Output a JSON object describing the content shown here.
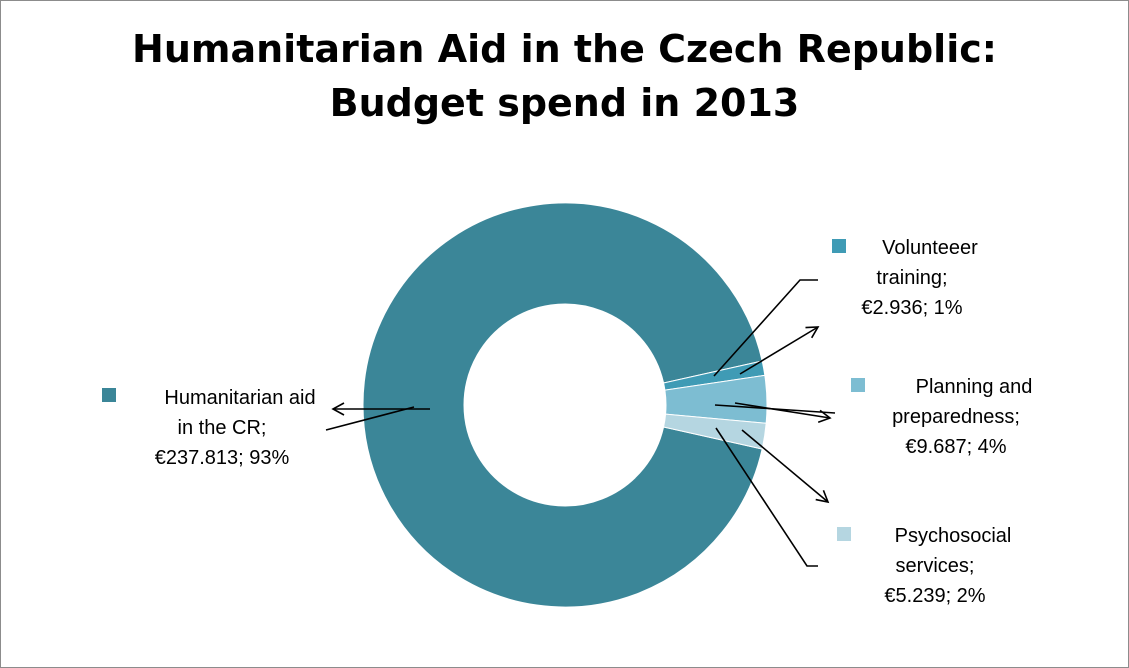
{
  "chart_data": {
    "type": "pie",
    "variant": "donut",
    "title_lines": [
      "Humanitarian Aid in the Czech Republic:",
      "Budget spend in 2013"
    ],
    "series": [
      {
        "name": "",
        "categories": [
          "Humanitarian aid in the CR",
          "Volunteeer training",
          "Planning and preparedness",
          "Psychosocial services"
        ],
        "values": [
          237.813,
          2.936,
          9.687,
          5.239
        ],
        "percent_labels": [
          "93%",
          "1%",
          "4%",
          "2%"
        ],
        "colors": [
          "#3b8698",
          "#3f9bb5",
          "#7dbdd2",
          "#b5d6e1"
        ]
      }
    ],
    "data_labels": [
      {
        "lines": [
          "Humanitarian aid",
          "in the CR;",
          "€237.813; 93%"
        ]
      },
      {
        "lines": [
          "Volunteeer",
          "training;",
          "€2.936; 1%"
        ]
      },
      {
        "lines": [
          "Planning and",
          "preparedness;",
          "€9.687; 4%"
        ]
      },
      {
        "lines": [
          "Psychosocial",
          "services;",
          "€5.239; 2%"
        ]
      }
    ],
    "legend": "none"
  }
}
